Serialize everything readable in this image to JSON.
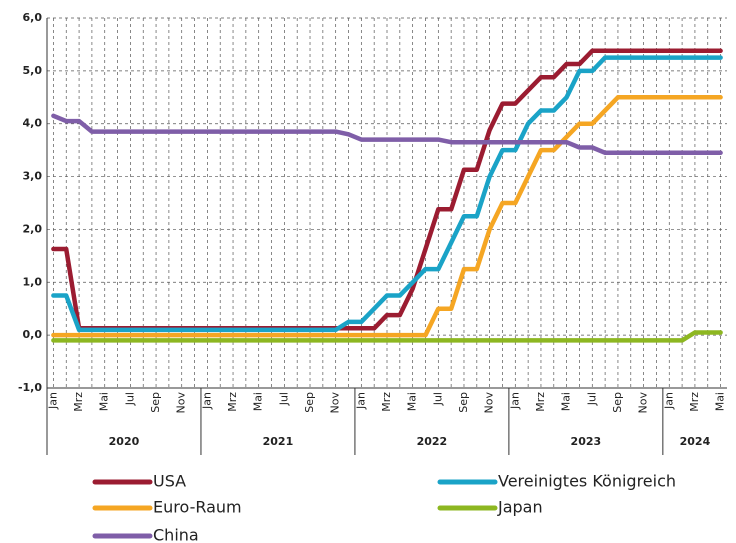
{
  "chart_data": {
    "type": "line",
    "categories": [
      "Jan",
      null,
      "Mrz",
      null,
      "Mai",
      null,
      "Jul",
      null,
      "Sep",
      null,
      "Nov",
      null,
      "Jan",
      null,
      "Mrz",
      null,
      "Mai",
      null,
      "Jul",
      null,
      "Sep",
      null,
      "Nov",
      null,
      "Jan",
      null,
      "Mrz",
      null,
      "Mai",
      null,
      "Jul",
      null,
      "Sep",
      null,
      "Nov",
      null,
      "Jan",
      null,
      "Mrz",
      null,
      "Mai",
      null,
      "Jul",
      null,
      "Sep",
      null,
      "Nov",
      null,
      "Jan",
      null,
      "Mrz",
      null,
      "Mai"
    ],
    "years": [
      "2020",
      "2021",
      "2022",
      "2023",
      "2024"
    ],
    "ylim": [
      -1,
      6
    ],
    "yticks": [
      {
        "value": -1,
        "label": "-1,0"
      },
      {
        "value": 0,
        "label": "0,0"
      },
      {
        "value": 1,
        "label": "1,0"
      },
      {
        "value": 2,
        "label": "2,0"
      },
      {
        "value": 3,
        "label": "3,0"
      },
      {
        "value": 4,
        "label": "4,0"
      },
      {
        "value": 5,
        "label": "5,0"
      },
      {
        "value": 6,
        "label": "6,0"
      }
    ],
    "grid": true,
    "series": [
      {
        "name": "USA",
        "color": "#9b1c31",
        "values": [
          1.63,
          1.63,
          0.13,
          0.13,
          0.13,
          0.13,
          0.13,
          0.13,
          0.13,
          0.13,
          0.13,
          0.13,
          0.13,
          0.13,
          0.13,
          0.13,
          0.13,
          0.13,
          0.13,
          0.13,
          0.13,
          0.13,
          0.13,
          0.13,
          0.13,
          0.13,
          0.38,
          0.38,
          0.88,
          1.63,
          2.38,
          2.38,
          3.13,
          3.13,
          3.88,
          4.38,
          4.38,
          4.63,
          4.88,
          4.88,
          5.13,
          5.13,
          5.38,
          5.38,
          5.38,
          5.38,
          5.38,
          5.38,
          5.38,
          5.38,
          5.38,
          5.38,
          5.38
        ]
      },
      {
        "name": "Vereinigtes Königreich",
        "color": "#1aa3c7",
        "values": [
          0.75,
          0.75,
          0.1,
          0.1,
          0.1,
          0.1,
          0.1,
          0.1,
          0.1,
          0.1,
          0.1,
          0.1,
          0.1,
          0.1,
          0.1,
          0.1,
          0.1,
          0.1,
          0.1,
          0.1,
          0.1,
          0.1,
          0.1,
          0.25,
          0.25,
          0.5,
          0.75,
          0.75,
          1.0,
          1.25,
          1.25,
          1.75,
          2.25,
          2.25,
          3.0,
          3.5,
          3.5,
          4.0,
          4.25,
          4.25,
          4.5,
          5.0,
          5.0,
          5.25,
          5.25,
          5.25,
          5.25,
          5.25,
          5.25,
          5.25,
          5.25,
          5.25,
          5.25
        ]
      },
      {
        "name": "Euro-Raum",
        "color": "#f5a623",
        "values": [
          0,
          0,
          0,
          0,
          0,
          0,
          0,
          0,
          0,
          0,
          0,
          0,
          0,
          0,
          0,
          0,
          0,
          0,
          0,
          0,
          0,
          0,
          0,
          0,
          0,
          0,
          0,
          0,
          0,
          0,
          0.5,
          0.5,
          1.25,
          1.25,
          2.0,
          2.5,
          2.5,
          3.0,
          3.5,
          3.5,
          3.75,
          4.0,
          4.0,
          4.25,
          4.5,
          4.5,
          4.5,
          4.5,
          4.5,
          4.5,
          4.5,
          4.5,
          4.5
        ]
      },
      {
        "name": "Japan",
        "color": "#8db721",
        "values": [
          -0.1,
          -0.1,
          -0.1,
          -0.1,
          -0.1,
          -0.1,
          -0.1,
          -0.1,
          -0.1,
          -0.1,
          -0.1,
          -0.1,
          -0.1,
          -0.1,
          -0.1,
          -0.1,
          -0.1,
          -0.1,
          -0.1,
          -0.1,
          -0.1,
          -0.1,
          -0.1,
          -0.1,
          -0.1,
          -0.1,
          -0.1,
          -0.1,
          -0.1,
          -0.1,
          -0.1,
          -0.1,
          -0.1,
          -0.1,
          -0.1,
          -0.1,
          -0.1,
          -0.1,
          -0.1,
          -0.1,
          -0.1,
          -0.1,
          -0.1,
          -0.1,
          -0.1,
          -0.1,
          -0.1,
          -0.1,
          -0.1,
          -0.1,
          0.05,
          0.05,
          0.05
        ]
      },
      {
        "name": "China",
        "color": "#7f5ea8",
        "values": [
          4.15,
          4.05,
          4.05,
          3.85,
          3.85,
          3.85,
          3.85,
          3.85,
          3.85,
          3.85,
          3.85,
          3.85,
          3.85,
          3.85,
          3.85,
          3.85,
          3.85,
          3.85,
          3.85,
          3.85,
          3.85,
          3.85,
          3.85,
          3.8,
          3.7,
          3.7,
          3.7,
          3.7,
          3.7,
          3.7,
          3.7,
          3.65,
          3.65,
          3.65,
          3.65,
          3.65,
          3.65,
          3.65,
          3.65,
          3.65,
          3.65,
          3.55,
          3.55,
          3.45,
          3.45,
          3.45,
          3.45,
          3.45,
          3.45,
          3.45,
          3.45,
          3.45,
          3.45
        ]
      }
    ]
  }
}
